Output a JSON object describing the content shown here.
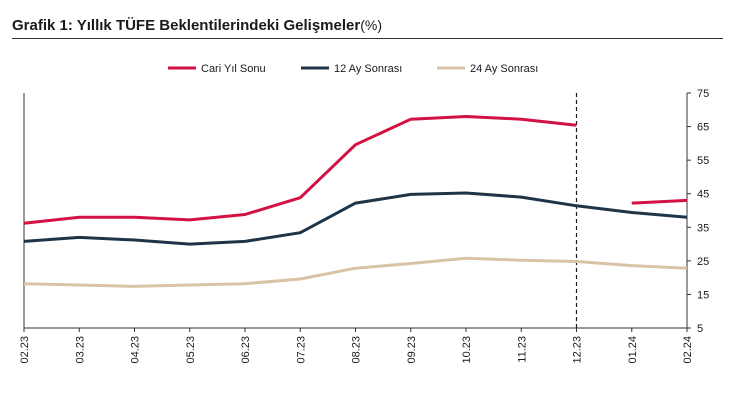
{
  "title": "Grafik 1: Yıllık TÜFE Beklentilerindeki Gelişmeler",
  "unit": "(%)",
  "chart_data": {
    "type": "line",
    "categories": [
      "02.23",
      "03.23",
      "04.23",
      "05.23",
      "06.23",
      "07.23",
      "08.23",
      "09.23",
      "10.23",
      "11.23",
      "12.23",
      "01.24",
      "02.24"
    ],
    "series": [
      {
        "name": "Cari Yıl Sonu",
        "color": "#d21242",
        "values": [
          36.2,
          38.0,
          38.0,
          37.2,
          38.8,
          43.8,
          59.6,
          67.2,
          68.0,
          67.2,
          65.4,
          null,
          null
        ]
      },
      {
        "name": "Cari Yıl Sonu",
        "color": "#d21242",
        "legend": false,
        "values": [
          null,
          null,
          null,
          null,
          null,
          null,
          null,
          null,
          null,
          null,
          null,
          42.2,
          43.0
        ]
      },
      {
        "name": "12 Ay Sonrası",
        "color": "#1f3447",
        "values": [
          30.8,
          32.0,
          31.2,
          30.0,
          30.8,
          33.4,
          42.2,
          44.8,
          45.2,
          44.0,
          41.4,
          39.4,
          38.0
        ]
      },
      {
        "name": "24 Ay Sonrası",
        "color": "#d9c3a5",
        "values": [
          18.2,
          17.8,
          17.4,
          17.8,
          18.2,
          19.6,
          22.8,
          24.2,
          25.8,
          25.2,
          24.8,
          23.6,
          22.8
        ]
      }
    ],
    "y_ticks": [
      "5",
      "15",
      "25",
      "35",
      "45",
      "55",
      "65",
      "75"
    ],
    "ylim": [
      5,
      75
    ],
    "y_axis_side": "right",
    "vline_at": "12.23",
    "legend_position": "top-center",
    "grid": false
  }
}
